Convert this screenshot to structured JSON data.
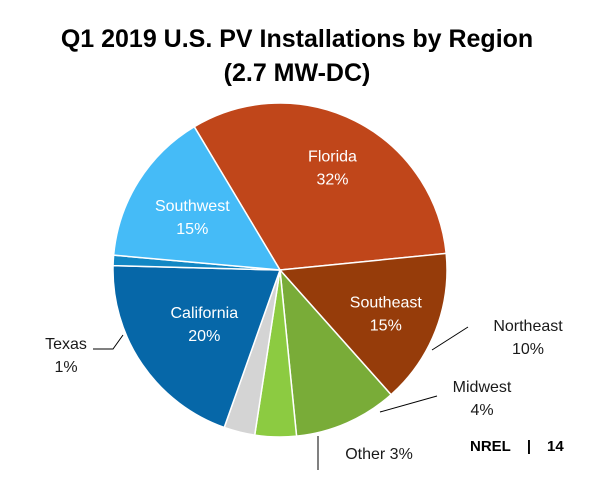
{
  "chart_data": {
    "type": "pie",
    "title": "Q1 2019 U.S. PV Installations by Region",
    "subtitle": "(2.7 MW-DC)",
    "slices": [
      {
        "label": "Florida",
        "value": 32,
        "value_label": "32%",
        "color": "#C0461A"
      },
      {
        "label": "Southeast",
        "value": 15,
        "value_label": "15%",
        "color": "#963C0A"
      },
      {
        "label": "Northeast",
        "value": 10,
        "value_label": "10%",
        "color": "#79AC38"
      },
      {
        "label": "Midwest",
        "value": 4,
        "value_label": "4%",
        "color": "#8CCB41"
      },
      {
        "label": "Other",
        "value": 3,
        "value_label": "3%",
        "color": "#D4D4D4"
      },
      {
        "label": "California",
        "value": 20,
        "value_label": "20%",
        "color": "#0667A8"
      },
      {
        "label": "Texas",
        "value": 1,
        "value_label": "1%",
        "color": "#1287C4"
      },
      {
        "label": "Southwest",
        "value": 15,
        "value_label": "15%",
        "color": "#45BBF7"
      }
    ]
  },
  "footer": {
    "source": "NREL",
    "separator": "|",
    "page_number": "14"
  }
}
